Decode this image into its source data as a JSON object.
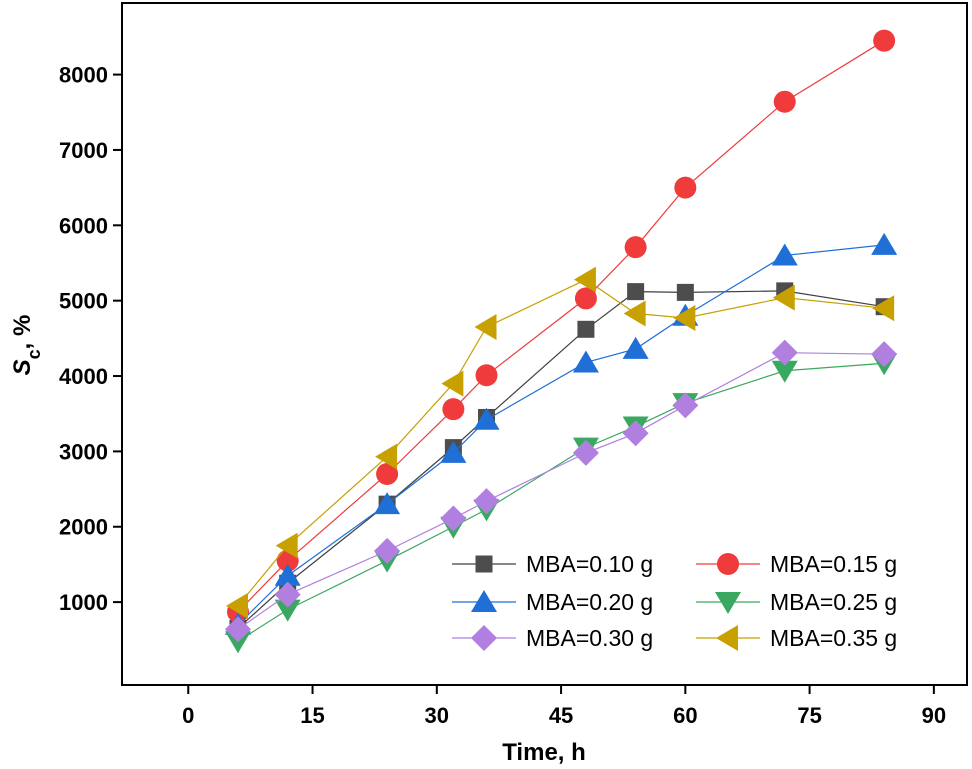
{
  "chart_data": {
    "type": "line",
    "title": "",
    "xlabel": "Time, h",
    "ylabel_main": "S",
    "ylabel_sub": "c",
    "ylabel_suffix": ", %",
    "xlim": [
      -8,
      94
    ],
    "ylim": [
      -100,
      8950
    ],
    "xticks": [
      0,
      15,
      30,
      45,
      60,
      75,
      90
    ],
    "yticks": [
      1000,
      2000,
      3000,
      4000,
      5000,
      6000,
      7000,
      8000
    ],
    "x": [
      6,
      12,
      24,
      32,
      36,
      48,
      54,
      60,
      72,
      84
    ],
    "grid": false,
    "legend_position": "bottom-right",
    "series": [
      {
        "name": "MBA=0.10 g",
        "color": "#4d4d4d",
        "line_color": "#404040",
        "marker": "square",
        "values": [
          650,
          1250,
          2300,
          3050,
          3450,
          4620,
          5120,
          5110,
          5130,
          4920
        ]
      },
      {
        "name": "MBA=0.15 g",
        "color": "#ef3b3b",
        "line_color": "#ef3b3b",
        "marker": "circle",
        "values": [
          870,
          1550,
          2700,
          3560,
          4010,
          5030,
          5710,
          6500,
          7640,
          8450
        ]
      },
      {
        "name": "MBA=0.20 g",
        "color": "#1f6fd6",
        "line_color": "#1f6fd6",
        "marker": "triangle-up",
        "values": [
          700,
          1350,
          2300,
          2980,
          3420,
          4180,
          4360,
          4800,
          5600,
          5740
        ]
      },
      {
        "name": "MBA=0.25 g",
        "color": "#3aa860",
        "line_color": "#3aa860",
        "marker": "triangle-down",
        "values": [
          480,
          900,
          1550,
          2000,
          2230,
          3050,
          3330,
          3640,
          4070,
          4170
        ]
      },
      {
        "name": "MBA=0.30 g",
        "color": "#b07fe0",
        "line_color": "#b07fe0",
        "marker": "diamond",
        "values": [
          640,
          1100,
          1680,
          2110,
          2340,
          2980,
          3240,
          3610,
          4310,
          4290
        ]
      },
      {
        "name": "MBA=0.35 g",
        "color": "#c8a000",
        "line_color": "#c8a000",
        "marker": "triangle-left",
        "values": [
          950,
          1750,
          2930,
          3900,
          4650,
          5280,
          4830,
          4770,
          5040,
          4900
        ]
      }
    ]
  }
}
